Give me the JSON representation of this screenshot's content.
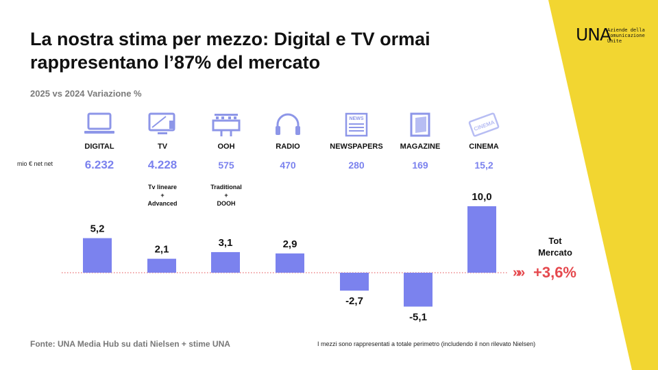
{
  "title_line1": "La nostra stima per mezzo: Digital e TV ormai",
  "title_line2": "rappresentano l’87% del mercato",
  "subtitle": "2025 vs 2024 Variazione %",
  "logo": {
    "mark": "UNA",
    "line1": "Aziende della",
    "line2": "Comunicazione",
    "line3": "Unite"
  },
  "unit_label": "mio € net net",
  "media": [
    {
      "name": "DIGITAL",
      "value": "6.232",
      "icon": "laptop-icon"
    },
    {
      "name": "TV",
      "value": "4.228",
      "icon": "tv-icon"
    },
    {
      "name": "OOH",
      "value": "575",
      "icon": "billboard-icon"
    },
    {
      "name": "RADIO",
      "value": "470",
      "icon": "headphones-icon"
    },
    {
      "name": "NEWSPAPERS",
      "value": "280",
      "icon": "newspaper-icon"
    },
    {
      "name": "MAGAZINE",
      "value": "169",
      "icon": "magazine-icon"
    },
    {
      "name": "CINEMA",
      "value": "15,2",
      "icon": "cinema-ticket-icon"
    }
  ],
  "notes": {
    "tv": {
      "line1": "Tv lineare",
      "line2": "+",
      "line3": "Advanced"
    },
    "ooh": {
      "line1": "Traditional",
      "line2": "+",
      "line3": "DOOH"
    }
  },
  "total": {
    "label_line1": "Tot",
    "label_line2": "Mercato",
    "arrows": "»»",
    "value": "+3,6%"
  },
  "source": "Fonte: UNA Media Hub su dati Nielsen + stime UNA",
  "footnote": "I mezzi sono rappresentati a totale perimetro (includendo il non rilevato Nielsen)",
  "colors": {
    "bar": "#7b82ee",
    "accent": "#e5484d",
    "yellow": "#f2d631",
    "value_text": "#7b82ee"
  },
  "chart_data": {
    "type": "bar",
    "categories": [
      "DIGITAL",
      "TV",
      "OOH",
      "RADIO",
      "NEWSPAPERS",
      "MAGAZINE",
      "CINEMA"
    ],
    "values": [
      5.2,
      2.1,
      3.1,
      2.9,
      -2.7,
      -5.1,
      10.0
    ],
    "data_labels": [
      "5,2",
      "2,1",
      "3,1",
      "2,9",
      "-2,7",
      "-5,1",
      "10,0"
    ],
    "ylim": [
      -6,
      11
    ],
    "title": "2025 vs 2024 Variazione %",
    "baseline": "dotted red"
  }
}
